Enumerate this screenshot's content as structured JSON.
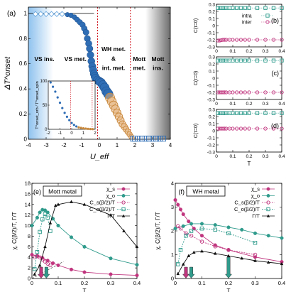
{
  "colors": {
    "blue": "#2f6db5",
    "blue_light": "#6aa8e0",
    "orange": "#c8873a",
    "teal": "#2f9b8c",
    "magenta": "#c0357e",
    "black": "#111111",
    "red_line": "#d0141e",
    "grid_gray": "#999999"
  },
  "chart_data": [
    {
      "id": "a",
      "type": "scatter",
      "panel_label": "(a)",
      "xlabel": "U_eff",
      "ylabel": "ΔT^onset",
      "xlim": [
        -4,
        4
      ],
      "ylim": [
        0,
        1.05
      ],
      "xticks": [
        "-4",
        "-3",
        "-2",
        "-1",
        "0",
        "1",
        "2",
        "3",
        "4"
      ],
      "yticks": [
        "0",
        "0.2",
        "0.4",
        "0.6",
        "0.8",
        "1"
      ],
      "region_labels": [
        "VS ins.",
        "VS met.",
        "WH met.",
        "&",
        "int. met.",
        "Mott",
        "met.",
        "Mott",
        "ins."
      ],
      "vlines": [
        -0.1,
        1.75
      ],
      "series": [
        {
          "marker": "open-diamond",
          "x": [
            -3.6,
            -3.3,
            -3.0,
            -2.7,
            -2.4,
            -2.1
          ],
          "y": [
            0.995,
            0.995,
            0.995,
            0.995,
            0.995,
            0.995
          ]
        },
        {
          "marker": "filled-blue",
          "x": [
            -1.8,
            -1.6,
            -1.4,
            -1.25,
            -1.1,
            -0.95,
            -0.85,
            -0.75,
            -0.68,
            -0.6,
            -0.55,
            -0.5,
            -0.45,
            -0.4,
            -0.35,
            -0.3,
            -0.25,
            -0.2,
            -0.1,
            0.0,
            0.1,
            0.2,
            0.3,
            0.4,
            0.5
          ],
          "y": [
            0.99,
            0.985,
            0.97,
            0.95,
            0.93,
            0.91,
            0.88,
            0.85,
            0.8,
            0.76,
            0.72,
            0.67,
            0.62,
            0.58,
            0.55,
            0.52,
            0.5,
            0.485,
            0.47,
            0.46,
            0.45,
            0.43,
            0.41,
            0.38,
            0.36
          ]
        },
        {
          "marker": "orange-circle",
          "x": [
            0.6,
            0.7,
            0.8,
            0.9,
            1.0,
            1.1,
            1.2,
            1.3,
            1.4,
            1.5,
            1.6,
            1.7,
            1.8
          ],
          "y": [
            0.33,
            0.3,
            0.27,
            0.24,
            0.21,
            0.18,
            0.15,
            0.12,
            0.1,
            0.08,
            0.06,
            0.04,
            0.02
          ]
        },
        {
          "marker": "open-square",
          "x": [
            1.9,
            2.0,
            2.2,
            2.4,
            2.6,
            2.8,
            3.0,
            3.2,
            3.4,
            3.6
          ],
          "y": [
            0.005,
            0.005,
            0.005,
            0.005,
            0.005,
            0.005,
            0.005,
            0.005,
            0.005,
            0.005
          ]
        }
      ],
      "inset": {
        "ylabel": "T^onset_orb / T^onset_spin",
        "xlim": [
          -2,
          2
        ],
        "ylim": [
          0,
          100
        ],
        "xticks": [
          "-2",
          "-1",
          "0",
          "1",
          "2"
        ],
        "yticks": [
          "0",
          "50",
          "100"
        ],
        "x": [
          -1.8,
          -1.6,
          -1.4,
          -1.2,
          -1.0,
          -0.8,
          -0.6,
          -0.4,
          -0.2,
          0.0,
          0.2,
          0.4,
          0.6,
          0.8,
          1.0,
          1.2,
          1.4,
          1.6,
          1.8
        ],
        "y": [
          97,
          88,
          78,
          66,
          55,
          44,
          34,
          26,
          19,
          13,
          9,
          6,
          4,
          3,
          2,
          1.5,
          1,
          0.5,
          0.3
        ]
      }
    },
    {
      "id": "b",
      "type": "line",
      "panel_label": "(b)",
      "ylabel": "C(τ=0)",
      "xlim": [
        0,
        0.4
      ],
      "ylim": [
        -0.3,
        0.3
      ],
      "xticks": [
        "0",
        "0.1",
        "0.2",
        "0.3",
        "0.4"
      ],
      "yticks": [
        "-0.3",
        "-0.2",
        "-0.1",
        "0",
        "0.1",
        "0.2",
        "0.3"
      ],
      "legend": [
        "intra",
        "inter"
      ],
      "x": [
        0.01,
        0.02,
        0.03,
        0.04,
        0.05,
        0.06,
        0.08,
        0.1,
        0.125,
        0.15,
        0.175,
        0.2,
        0.25,
        0.3,
        0.35,
        0.4
      ],
      "series": [
        {
          "name": "intra",
          "marker": "square",
          "values": [
            0.248,
            0.248,
            0.248,
            0.248,
            0.248,
            0.248,
            0.248,
            0.248,
            0.248,
            0.248,
            0.248,
            0.248,
            0.248,
            0.248,
            0.248,
            0.248
          ]
        },
        {
          "name": "inter",
          "marker": "circle",
          "values": [
            -0.21,
            -0.21,
            -0.205,
            -0.2,
            -0.2,
            -0.2,
            -0.2,
            -0.2,
            -0.2,
            -0.2,
            -0.2,
            -0.2,
            -0.2,
            -0.2,
            -0.2,
            -0.2
          ]
        }
      ]
    },
    {
      "id": "c",
      "type": "line",
      "panel_label": "(c)",
      "ylabel": "C(τ=0)",
      "xlim": [
        0,
        0.4
      ],
      "ylim": [
        -0.3,
        0.3
      ],
      "xticks": [
        "0",
        "0.1",
        "0.2",
        "0.3",
        "0.4"
      ],
      "yticks": [
        "-0.3",
        "-0.2",
        "-0.1",
        "0",
        "0.1",
        "0.2",
        "0.3"
      ],
      "x": [
        0.01,
        0.02,
        0.03,
        0.04,
        0.05,
        0.06,
        0.08,
        0.1,
        0.125,
        0.15,
        0.175,
        0.2,
        0.25,
        0.3,
        0.35,
        0.4
      ],
      "series": [
        {
          "marker": "square",
          "values": [
            0.248,
            0.248,
            0.248,
            0.248,
            0.248,
            0.248,
            0.248,
            0.248,
            0.248,
            0.248,
            0.248,
            0.248,
            0.248,
            0.248,
            0.248,
            0.248
          ]
        },
        {
          "marker": "circle",
          "values": [
            -0.2,
            -0.2,
            -0.2,
            -0.2,
            -0.2,
            -0.2,
            -0.2,
            -0.2,
            -0.2,
            -0.2,
            -0.2,
            -0.2,
            -0.2,
            -0.2,
            -0.2,
            -0.2
          ]
        }
      ]
    },
    {
      "id": "d",
      "type": "line",
      "panel_label": "(d)",
      "ylabel": "C(τ=0)",
      "xlabel": "T",
      "xlim": [
        0,
        0.4
      ],
      "ylim": [
        -0.3,
        0.3
      ],
      "xticks": [
        "0",
        "0.1",
        "0.2",
        "0.3",
        "0.4"
      ],
      "yticks": [
        "-0.3",
        "-0.2",
        "-0.1",
        "0",
        "0.1",
        "0.2",
        "0.3"
      ],
      "x": [
        0.01,
        0.02,
        0.03,
        0.04,
        0.05,
        0.06,
        0.08,
        0.1,
        0.125,
        0.15,
        0.175,
        0.2,
        0.25,
        0.3,
        0.35,
        0.4
      ],
      "series": [
        {
          "marker": "square",
          "values": [
            0.248,
            0.248,
            0.248,
            0.248,
            0.248,
            0.248,
            0.248,
            0.248,
            0.248,
            0.248,
            0.248,
            0.248,
            0.248,
            0.248,
            0.248,
            0.248
          ]
        },
        {
          "marker": "circle",
          "values": [
            0.03,
            0.03,
            0.03,
            0.03,
            0.03,
            0.03,
            0.03,
            0.03,
            0.03,
            0.03,
            0.03,
            0.03,
            0.03,
            0.03,
            0.03,
            0.03
          ]
        }
      ]
    },
    {
      "id": "e",
      "type": "line",
      "panel_label": "(e)",
      "title_box": "Mott metal",
      "xlabel": "T",
      "ylabel": "χ, C(β/2)/T, Γ/T",
      "xlim": [
        0,
        0.4
      ],
      "ylim": [
        0,
        18
      ],
      "xticks": [
        "0",
        "0.1",
        "0.2",
        "0.3",
        "0.4"
      ],
      "yticks": [
        "0",
        "2",
        "4",
        "6",
        "8",
        "10",
        "12",
        "14",
        "16",
        "18"
      ],
      "legend": [
        "χ_s",
        "χ_o",
        "C_s(β/2)/T",
        "C_o(β/2)/T",
        "Γ/T"
      ],
      "arrow_T": [
        0.035,
        0.055
      ],
      "series": [
        {
          "name": "χ_s",
          "marker": "filled-circle",
          "color": "magenta",
          "x": [
            0.0,
            0.02,
            0.04,
            0.06,
            0.08,
            0.1,
            0.15,
            0.2,
            0.3,
            0.4
          ],
          "values": [
            4.5,
            4.3,
            3.9,
            3.4,
            2.9,
            2.5,
            1.7,
            1.2,
            0.8,
            0.6
          ]
        },
        {
          "name": "χ_o",
          "marker": "filled-circle",
          "color": "teal",
          "x": [
            0.0,
            0.02,
            0.03,
            0.04,
            0.05,
            0.06,
            0.08,
            0.1,
            0.15,
            0.2,
            0.3,
            0.4
          ],
          "values": [
            10.0,
            11.5,
            12.5,
            13.0,
            12.9,
            12.5,
            11.3,
            10.0,
            7.8,
            6.0,
            3.8,
            2.6
          ]
        },
        {
          "name": "C_s(β/2)/T",
          "marker": "open-circle",
          "color": "magenta",
          "x": [
            0.01,
            0.02,
            0.03,
            0.04,
            0.05,
            0.06,
            0.07
          ],
          "values": [
            4.0,
            4.2,
            4.0,
            3.6,
            3.2,
            2.8,
            2.5
          ]
        },
        {
          "name": "C_o(β/2)/T",
          "marker": "open-square",
          "color": "teal",
          "x": [
            0.01,
            0.02,
            0.03,
            0.04,
            0.05,
            0.06,
            0.07
          ],
          "values": [
            1.8,
            5.0,
            8.8,
            11.2,
            12.2,
            11.5,
            9.0
          ]
        },
        {
          "name": "Γ/T",
          "marker": "filled-triangle",
          "color": "black",
          "x": [
            0.01,
            0.03,
            0.05,
            0.07,
            0.09,
            0.1,
            0.15,
            0.2,
            0.3,
            0.35,
            0.4
          ],
          "values": [
            0.8,
            2.5,
            6.0,
            10.5,
            13.8,
            14.0,
            14.5,
            14.0,
            12.0,
            9.0,
            6.0
          ]
        }
      ],
      "dashed_fit": {
        "x": [
          0.0,
          0.12
        ],
        "values": [
          0.0,
          3.2
        ]
      }
    },
    {
      "id": "f",
      "type": "line",
      "panel_label": "(f)",
      "title_box": "WH metal",
      "xlabel": "T",
      "ylabel": "χ, C(β/2)/T, Γ/T",
      "xlim": [
        0,
        0.4
      ],
      "ylim": [
        0,
        4
      ],
      "xticks": [
        "0",
        "0.1",
        "0.2",
        "0.3",
        "0.4"
      ],
      "yticks": [
        "0",
        "1",
        "2",
        "3",
        "4"
      ],
      "legend": [
        "χ_s",
        "χ_o",
        "C_s(β/2)/T",
        "C_o(β/2)/T",
        "Γ/T"
      ],
      "arrow_T": [
        0.04,
        0.06,
        0.2
      ],
      "series": [
        {
          "name": "χ_s",
          "marker": "filled-circle",
          "color": "magenta",
          "x": [
            0.0,
            0.01,
            0.02,
            0.03,
            0.05,
            0.07,
            0.1,
            0.15,
            0.2,
            0.3,
            0.4
          ],
          "values": [
            3.3,
            3.1,
            2.9,
            2.7,
            2.4,
            2.1,
            1.8,
            1.4,
            1.2,
            0.9,
            0.7
          ]
        },
        {
          "name": "χ_o",
          "marker": "filled-circle",
          "color": "teal",
          "x": [
            0.0,
            0.03,
            0.06,
            0.1,
            0.15,
            0.2,
            0.25,
            0.3,
            0.35,
            0.4
          ],
          "values": [
            2.1,
            2.2,
            2.3,
            2.3,
            2.25,
            2.15,
            2.05,
            1.9,
            1.8,
            1.7
          ]
        },
        {
          "name": "C_s(β/2)/T",
          "marker": "open-circle",
          "color": "magenta",
          "x": [
            0.01,
            0.02,
            0.04,
            0.06,
            0.1,
            0.15,
            0.2,
            0.3
          ],
          "values": [
            2.2,
            2.1,
            1.9,
            1.8,
            1.55,
            1.35,
            1.2,
            1.0
          ]
        },
        {
          "name": "C_o(β/2)/T",
          "marker": "open-square",
          "color": "teal",
          "x": [
            0.01,
            0.02,
            0.04,
            0.06,
            0.1,
            0.15,
            0.2,
            0.3
          ],
          "values": [
            0.6,
            1.2,
            1.8,
            2.0,
            2.1,
            2.05,
            1.9,
            1.5
          ]
        },
        {
          "name": "Γ/T",
          "marker": "filled-triangle",
          "color": "black",
          "x": [
            0.01,
            0.03,
            0.05,
            0.07,
            0.1,
            0.15,
            0.2,
            0.25,
            0.3,
            0.35,
            0.4
          ],
          "values": [
            0.2,
            0.6,
            0.95,
            1.1,
            1.15,
            1.05,
            0.95,
            0.85,
            0.75,
            0.68,
            0.62
          ]
        }
      ]
    }
  ]
}
